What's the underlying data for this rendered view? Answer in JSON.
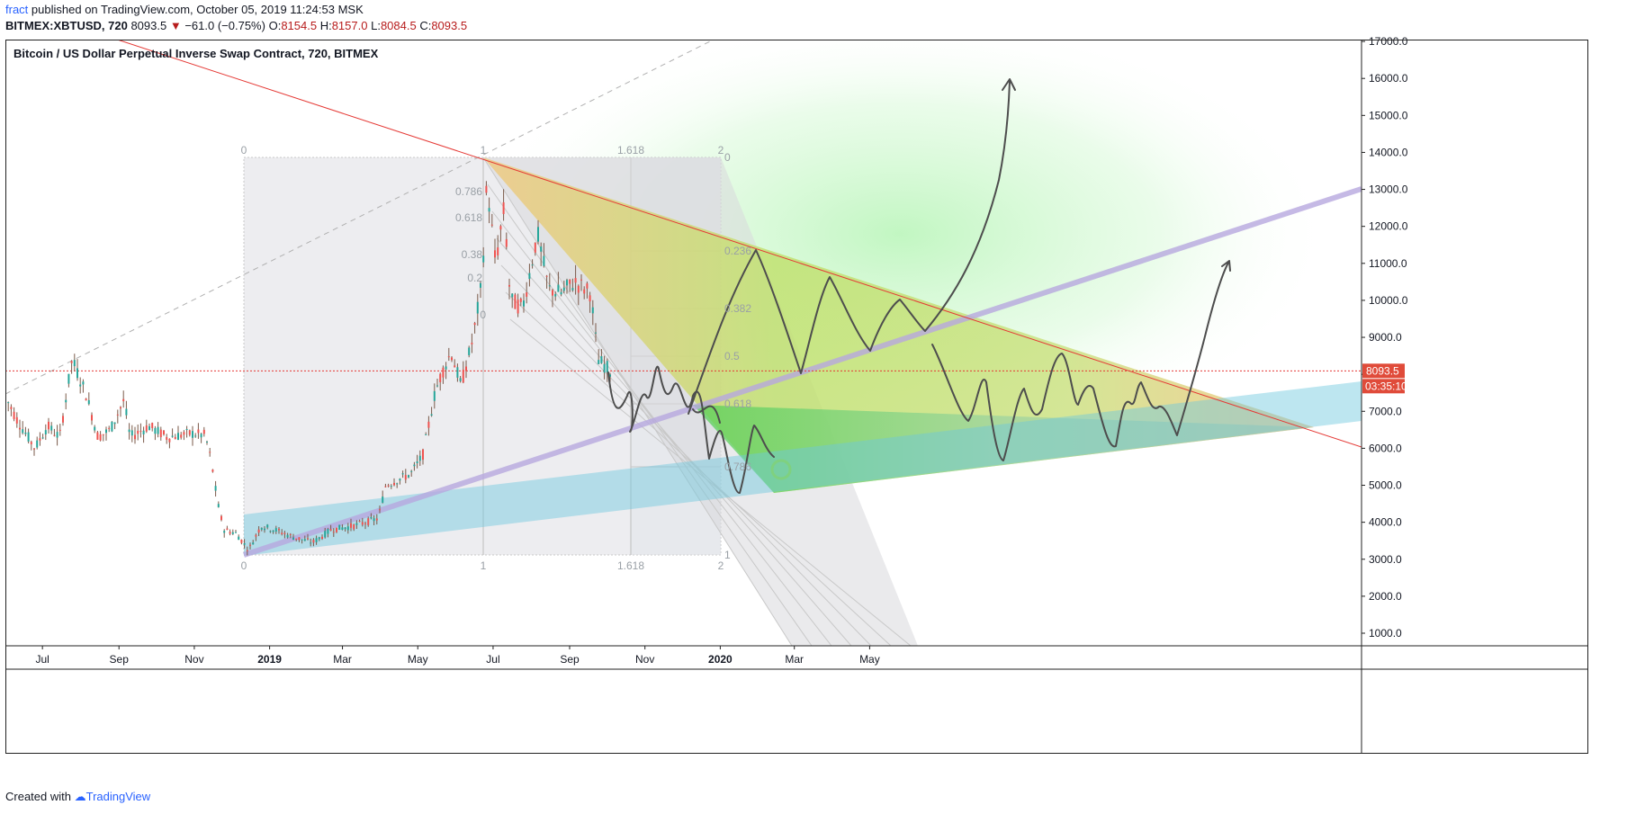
{
  "header": {
    "author": "fract",
    "published": "published on TradingView.com, October 05, 2019 11:24:53 MSK",
    "symbol": "BITMEX:XBTUSD, 720",
    "last": "8093.5",
    "arrow": "▼",
    "change": "−61.0 (−0.75%)",
    "o_label": "O:",
    "o_val": "8154.5",
    "h_label": "H:",
    "h_val": "8157.0",
    "l_label": "L:",
    "l_val": "8084.5",
    "c_label": "C:",
    "c_val": "8093.5"
  },
  "footer": {
    "created": "Created with",
    "brand": "TradingView"
  },
  "chart_data": {
    "type": "candlestick",
    "title": "Bitcoin / US Dollar Perpetual Inverse Swap Contract, 720, BITMEX",
    "y_ticks": [
      1000,
      2000,
      3000,
      4000,
      5000,
      6000,
      7000,
      8000,
      9000,
      10000,
      11000,
      12000,
      13000,
      14000,
      15000,
      16000,
      17000
    ],
    "y_tick_labels": [
      "1000.0",
      "2000.0",
      "3000.0",
      "4000.0",
      "5000.0",
      "6000.0",
      "7000.0",
      "8000.0",
      "9000.0",
      "10000.0",
      "11000.0",
      "12000.0",
      "13000.0",
      "14000.0",
      "15000.0",
      "16000.0",
      "17000.0"
    ],
    "ylim": [
      500,
      17300
    ],
    "x_ticks": [
      "Jul",
      "Sep",
      "Nov",
      "2019",
      "Mar",
      "May",
      "Jul",
      "Sep",
      "Nov",
      "2020",
      "Mar",
      "May"
    ],
    "x_ticks_bold": [
      "2019",
      "2020"
    ],
    "last_price_label": "8093.5",
    "countdown_label": "03:35:10",
    "price_path": [
      [
        "2018-06-01",
        7400
      ],
      [
        "2018-06-10",
        6800
      ],
      [
        "2018-06-25",
        6000
      ],
      [
        "2018-07-05",
        6600
      ],
      [
        "2018-07-15",
        6300
      ],
      [
        "2018-07-25",
        8400
      ],
      [
        "2018-08-05",
        7500
      ],
      [
        "2018-08-15",
        6300
      ],
      [
        "2018-08-25",
        6500
      ],
      [
        "2018-09-05",
        7300
      ],
      [
        "2018-09-10",
        6300
      ],
      [
        "2018-09-25",
        6600
      ],
      [
        "2018-10-10",
        6300
      ],
      [
        "2018-10-30",
        6400
      ],
      [
        "2018-11-10",
        6350
      ],
      [
        "2018-11-15",
        5600
      ],
      [
        "2018-11-20",
        4500
      ],
      [
        "2018-11-25",
        3800
      ],
      [
        "2018-12-05",
        3700
      ],
      [
        "2018-12-15",
        3250
      ],
      [
        "2018-12-25",
        3900
      ],
      [
        "2019-01-05",
        3800
      ],
      [
        "2019-01-20",
        3600
      ],
      [
        "2019-02-05",
        3450
      ],
      [
        "2019-02-20",
        3800
      ],
      [
        "2019-03-10",
        3900
      ],
      [
        "2019-03-30",
        4100
      ],
      [
        "2019-04-05",
        5000
      ],
      [
        "2019-04-25",
        5300
      ],
      [
        "2019-05-05",
        5800
      ],
      [
        "2019-05-15",
        7500
      ],
      [
        "2019-05-20",
        8000
      ],
      [
        "2019-05-28",
        8600
      ],
      [
        "2019-06-05",
        7700
      ],
      [
        "2019-06-15",
        9000
      ],
      [
        "2019-06-22",
        10500
      ],
      [
        "2019-06-26",
        13200
      ],
      [
        "2019-07-03",
        11000
      ],
      [
        "2019-07-10",
        12500
      ],
      [
        "2019-07-15",
        10000
      ],
      [
        "2019-07-25",
        9800
      ],
      [
        "2019-08-06",
        11800
      ],
      [
        "2019-08-15",
        10300
      ],
      [
        "2019-08-25",
        10200
      ],
      [
        "2019-09-05",
        10500
      ],
      [
        "2019-09-18",
        10200
      ],
      [
        "2019-09-24",
        8400
      ],
      [
        "2019-10-04",
        8100
      ]
    ],
    "fib_ratios_left": [
      "0.786",
      "0.618",
      "0.38",
      "0.2",
      "0"
    ],
    "fib_time_labels": [
      "0",
      "1",
      "1.618",
      "2"
    ],
    "fib_price_labels": [
      "0",
      "0.236",
      "0.382",
      "0.5",
      "0.618",
      "0.786",
      "1"
    ],
    "colors": {
      "up": "#26a69a",
      "down": "#ef5350",
      "candle_mix": "#7a5a4a",
      "trendline": "#e53935",
      "blue_channel": "#6cc8de",
      "green_zone": "#5ed35e",
      "orange_zone": "#f5b75e",
      "purple_line": "#b7a7de",
      "last_price_bg": "#e04b3a",
      "sketch": "#4d4d4d"
    }
  }
}
